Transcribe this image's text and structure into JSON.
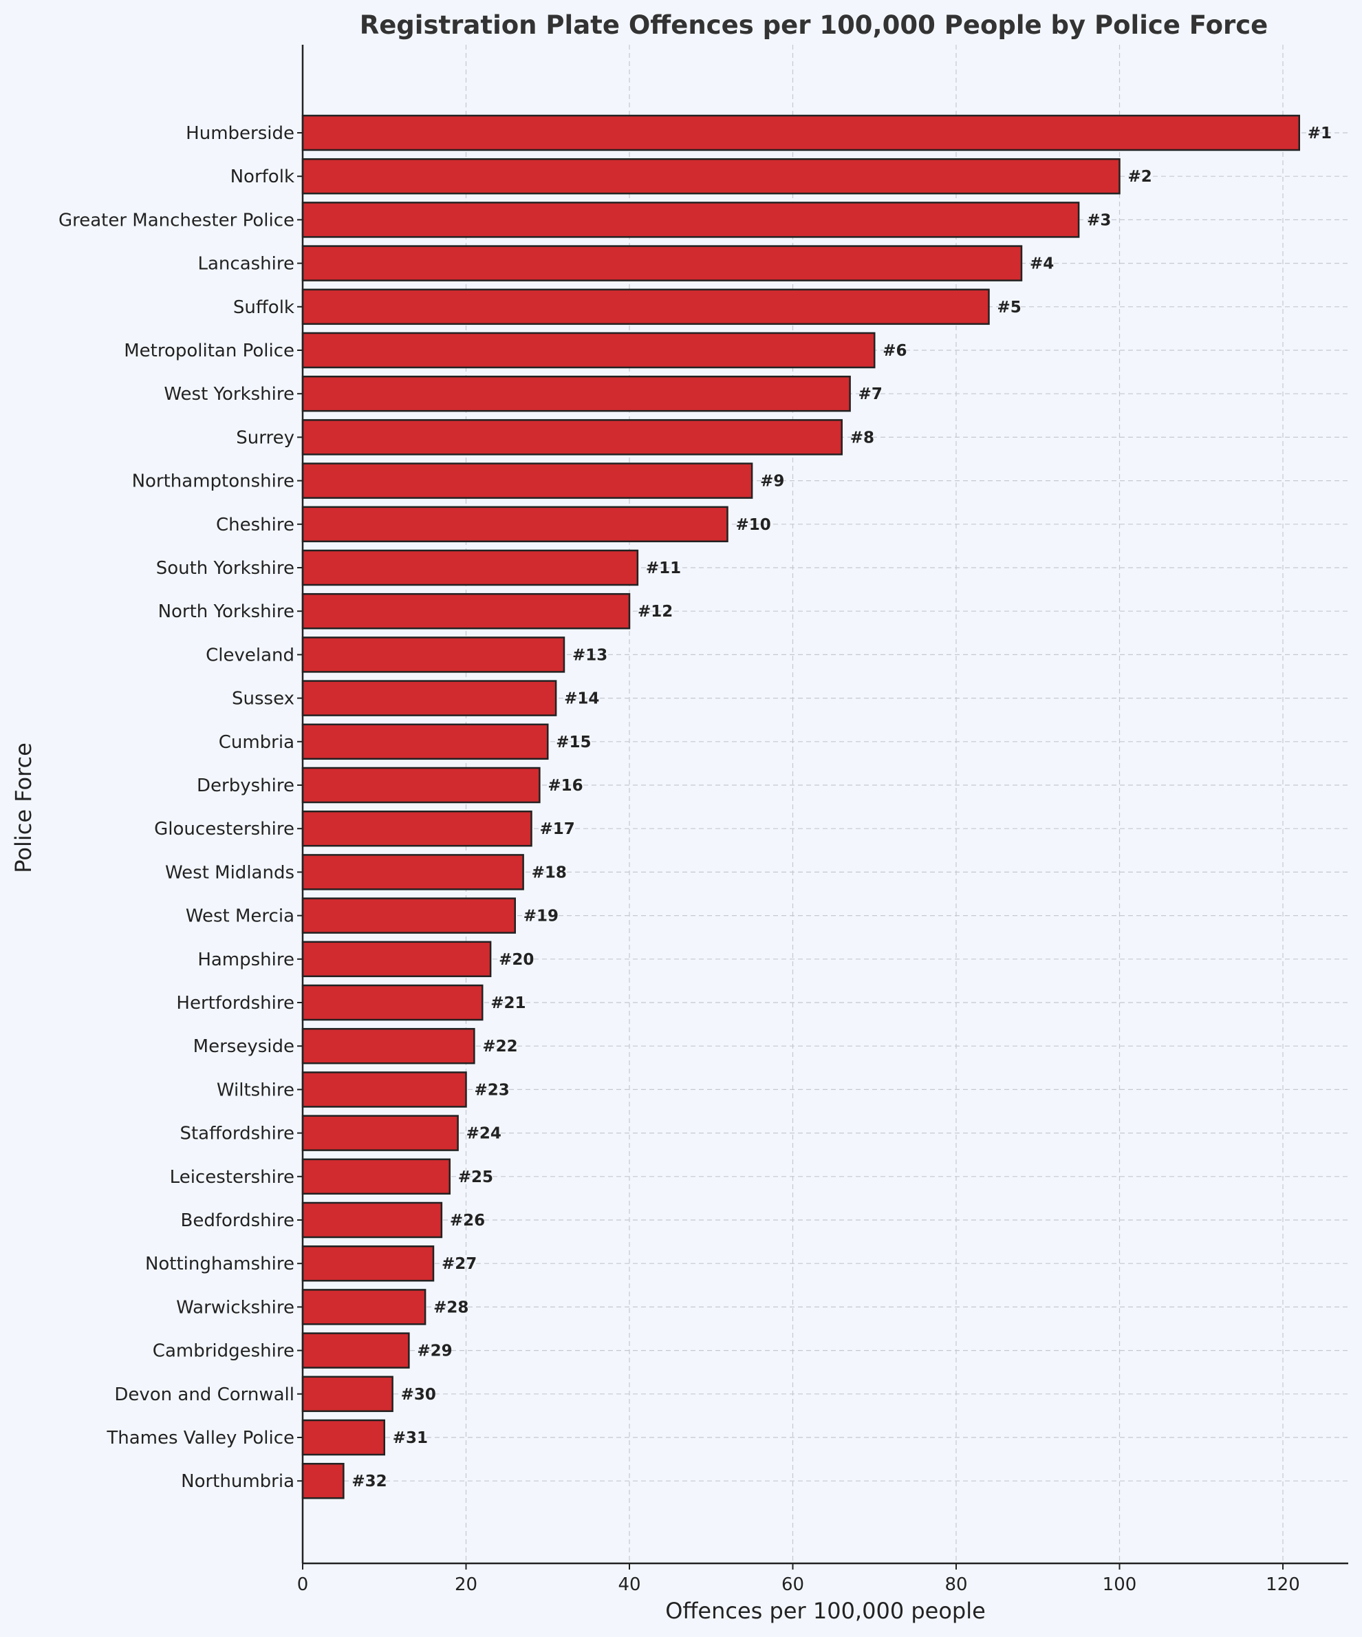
{
  "chart_data": {
    "type": "bar",
    "orientation": "horizontal",
    "title": "Registration Plate Offences per 100,000 People by Police Force",
    "xlabel": "Offences per 100,000 people",
    "ylabel": "Police Force",
    "xlim": [
      0,
      128
    ],
    "xticks": [
      0,
      20,
      40,
      60,
      80,
      100,
      120
    ],
    "grid": true,
    "bar_color": "#d12b2f",
    "edge_color": "#222222",
    "background_color": "#f3f7fd",
    "categories": [
      "Humberside",
      "Norfolk",
      "Greater Manchester Police",
      "Lancashire",
      "Suffolk",
      "Metropolitan Police",
      "West Yorkshire",
      "Surrey",
      "Northamptonshire",
      "Cheshire",
      "South Yorkshire",
      "North Yorkshire",
      "Cleveland",
      "Sussex",
      "Cumbria",
      "Derbyshire",
      "Gloucestershire",
      "West Midlands",
      "West Mercia",
      "Hampshire",
      "Hertfordshire",
      "Merseyside",
      "Wiltshire",
      "Staffordshire",
      "Leicestershire",
      "Bedfordshire",
      "Nottinghamshire",
      "Warwickshire",
      "Cambridgeshire",
      "Devon and Cornwall",
      "Thames Valley Police",
      "Northumbria"
    ],
    "values": [
      122,
      100,
      95,
      88,
      84,
      70,
      67,
      66,
      55,
      52,
      41,
      40,
      32,
      31,
      30,
      29,
      28,
      27,
      26,
      23,
      22,
      21,
      20,
      19,
      18,
      17,
      16,
      15,
      13,
      11,
      10,
      5
    ],
    "data_labels": [
      "#1",
      "#2",
      "#3",
      "#4",
      "#5",
      "#6",
      "#7",
      "#8",
      "#9",
      "#10",
      "#11",
      "#12",
      "#13",
      "#14",
      "#15",
      "#16",
      "#17",
      "#18",
      "#19",
      "#20",
      "#21",
      "#22",
      "#23",
      "#24",
      "#25",
      "#26",
      "#27",
      "#28",
      "#29",
      "#30",
      "#31",
      "#32"
    ]
  }
}
